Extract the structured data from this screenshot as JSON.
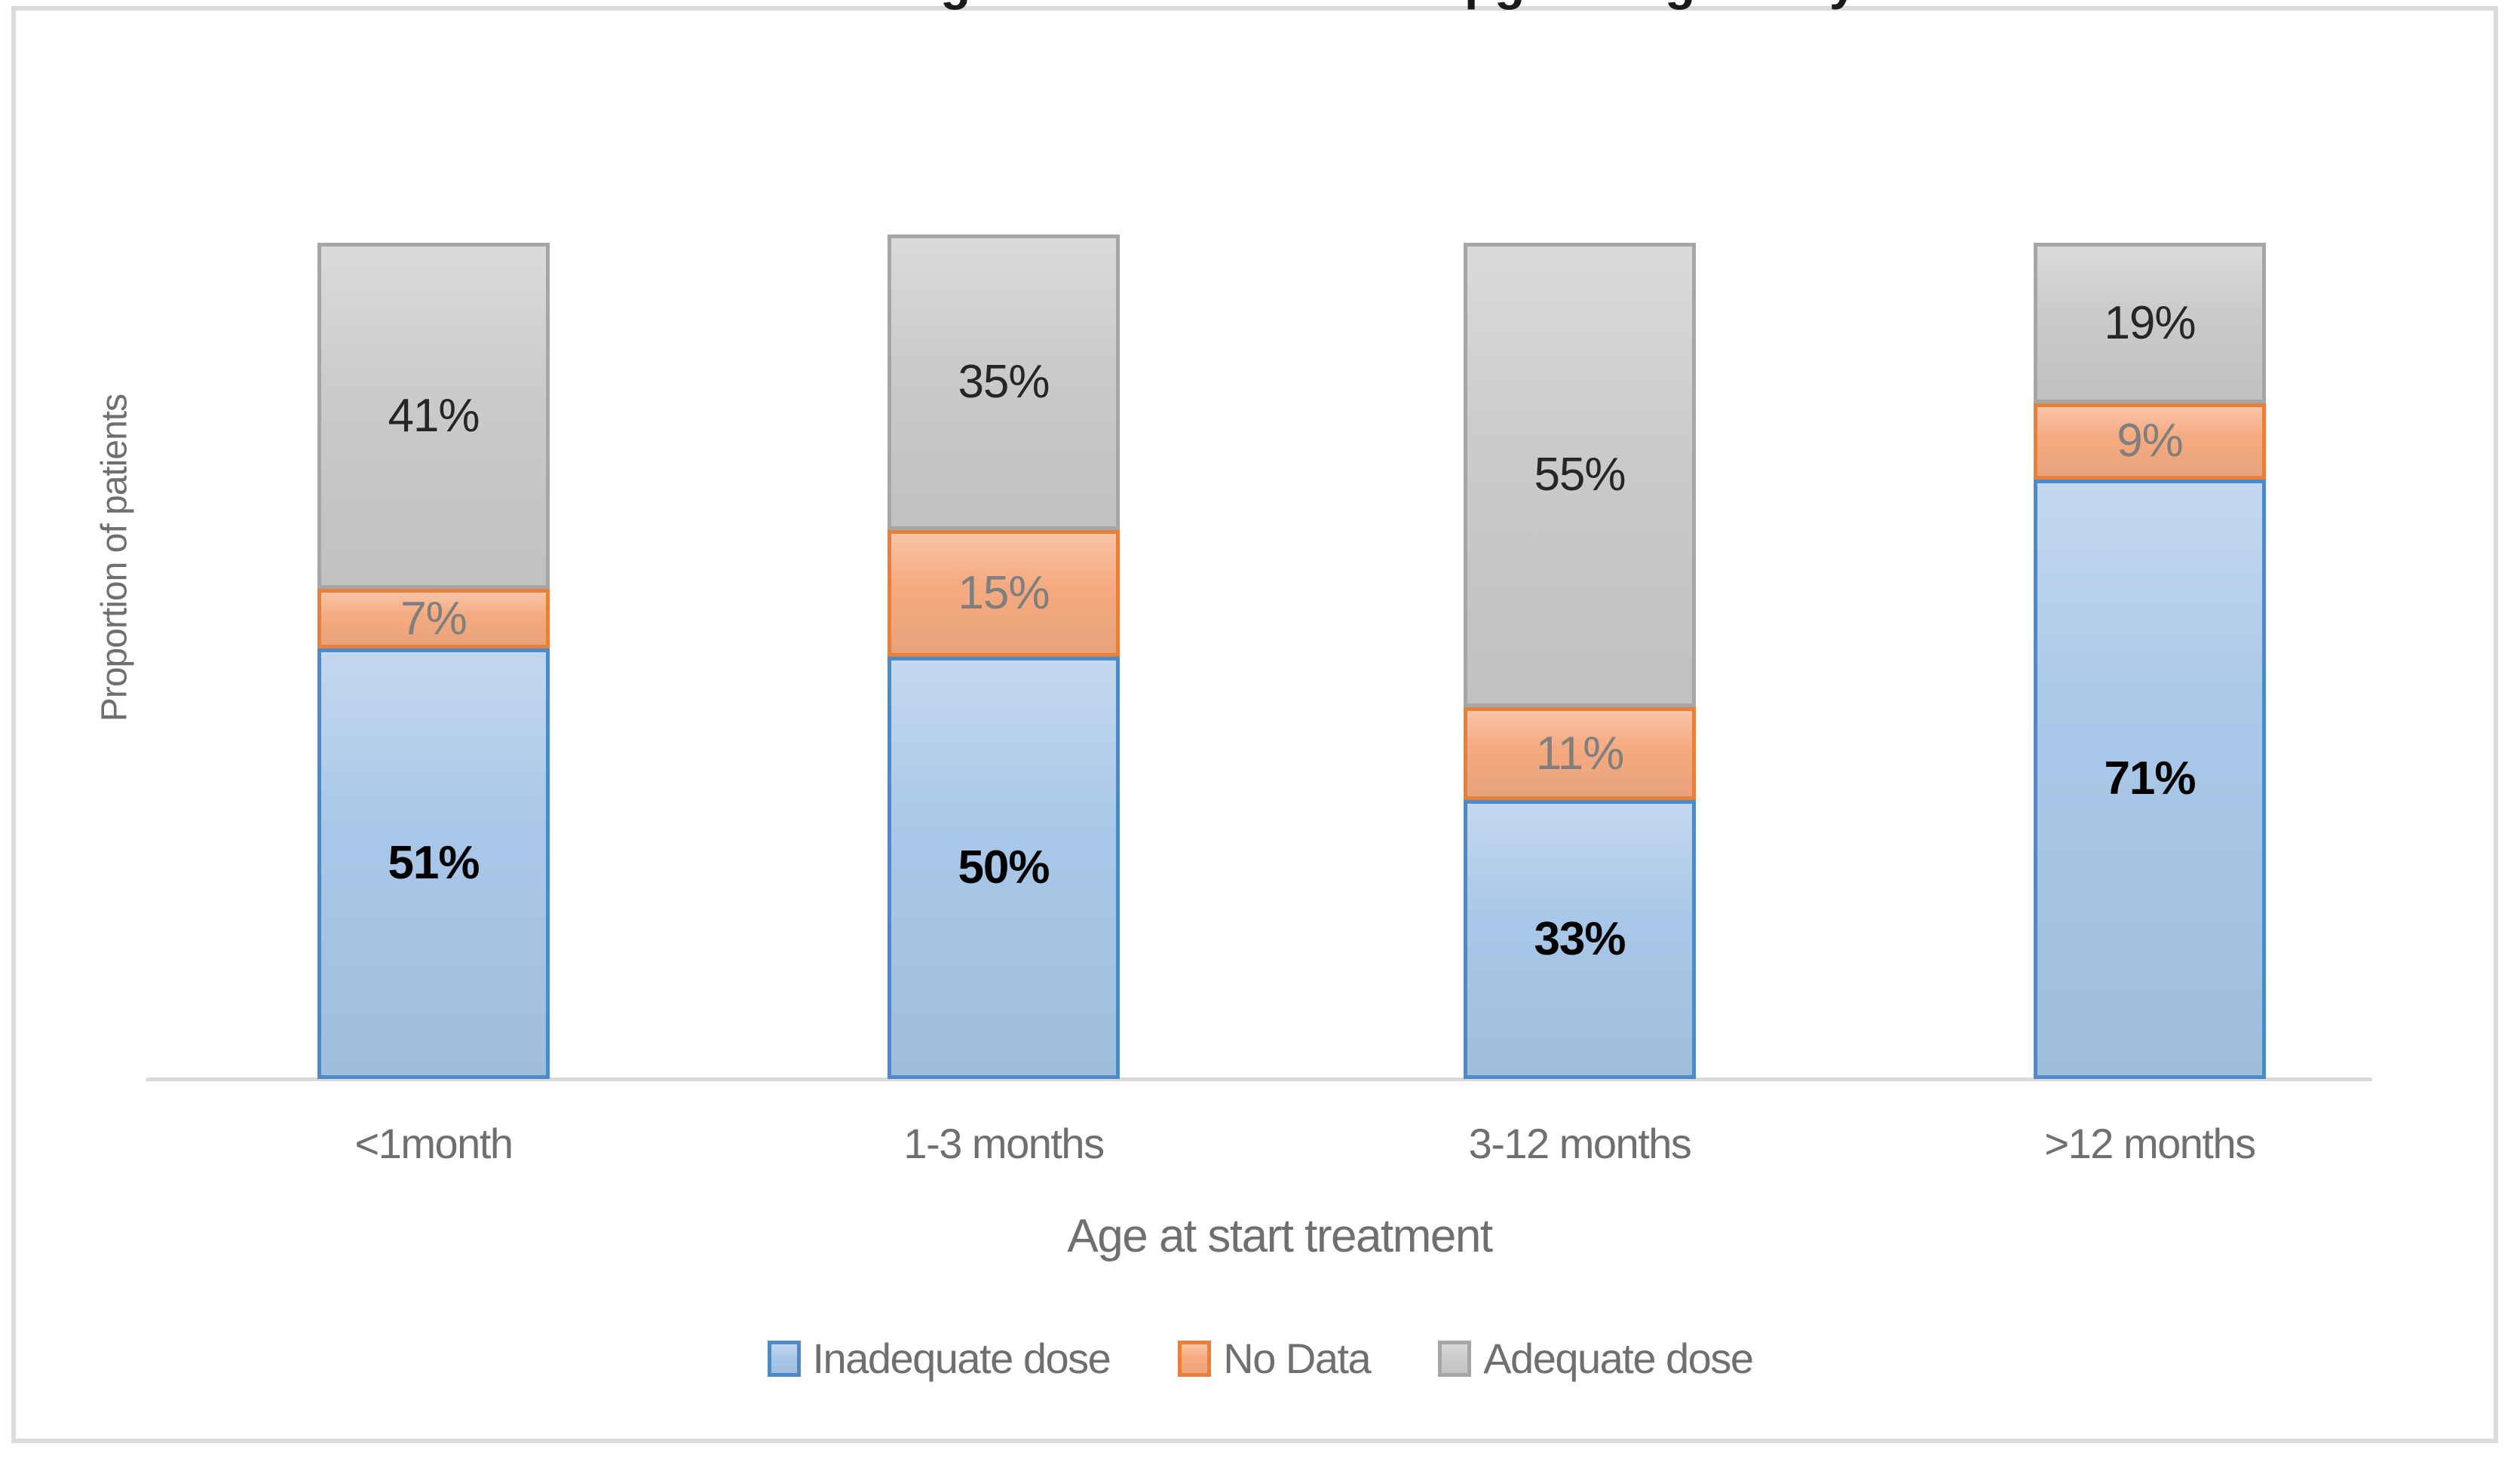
{
  "figure": {
    "clipped_title_fragments": [
      "g",
      "p",
      "g",
      "g",
      "y"
    ]
  },
  "chart_data": {
    "type": "bar",
    "subtype": "stacked-column",
    "title": "",
    "categories": [
      "<1month",
      "1-3 months",
      "3-12 months",
      ">12 months"
    ],
    "series": [
      {
        "name": "Inadequate dose",
        "values": [
          51,
          50,
          33,
          71
        ],
        "fill": "#a9c7e8",
        "border": "#4e8ac8",
        "label_color": "#000000",
        "label_bold": true
      },
      {
        "name": "No Data",
        "values": [
          7,
          15,
          11,
          9
        ],
        "fill": "#f5ab81",
        "border": "#e8803c",
        "label_color": "#7f7f7f",
        "label_bold": false
      },
      {
        "name": "Adequate dose",
        "values": [
          41,
          35,
          55,
          19
        ],
        "fill": "#cbcbcb",
        "border": "#a6a6a6",
        "label_color": "#262626",
        "label_bold": false
      }
    ],
    "value_suffix": "%",
    "xlabel": "Age at start treatment",
    "ylabel": "Proportion of patients",
    "ylim": [
      0,
      100
    ],
    "grid": false,
    "legend_position": "bottom",
    "axis_line_color": "#d9d9d9",
    "text_color": "#6f6f6f",
    "frame_border_color": "#dbdbdb"
  }
}
